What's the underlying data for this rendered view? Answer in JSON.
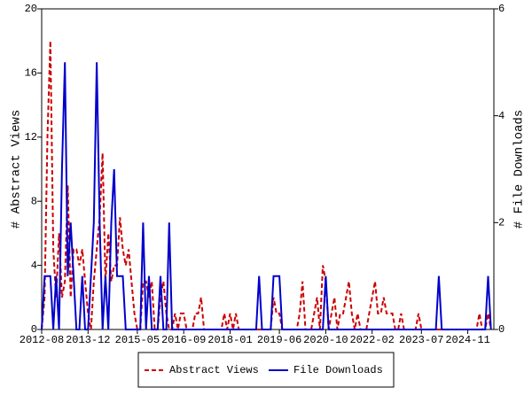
{
  "chart_data": {
    "type": "line",
    "categories": [
      "2012-08",
      null,
      null,
      null,
      null,
      null,
      null,
      null,
      null,
      null,
      null,
      null,
      null,
      null,
      null,
      null,
      "2013-12",
      null,
      null,
      null,
      null,
      null,
      null,
      null,
      null,
      null,
      null,
      null,
      null,
      null,
      null,
      null,
      null,
      "2015-05",
      null,
      null,
      null,
      null,
      null,
      null,
      null,
      null,
      null,
      null,
      null,
      null,
      null,
      null,
      null,
      "2016-09",
      null,
      null,
      null,
      null,
      null,
      null,
      null,
      null,
      null,
      null,
      null,
      null,
      null,
      null,
      null,
      "2018-01",
      null,
      null,
      null,
      null,
      null,
      null,
      null,
      null,
      null,
      null,
      null,
      null,
      null,
      null,
      null,
      null,
      "2019-06",
      null,
      null,
      null,
      null,
      null,
      null,
      null,
      null,
      null,
      null,
      null,
      null,
      null,
      null,
      null,
      "2020-10",
      null,
      null,
      null,
      null,
      null,
      null,
      null,
      null,
      null,
      null,
      null,
      null,
      null,
      null,
      null,
      "2022-02",
      null,
      null,
      null,
      null,
      null,
      null,
      null,
      null,
      null,
      null,
      null,
      null,
      null,
      null,
      null,
      null,
      "2023-07",
      null,
      null,
      null,
      null,
      null,
      null,
      null,
      null,
      null,
      null,
      null,
      null,
      null,
      null,
      null,
      "2024-11",
      null,
      null,
      null,
      null,
      null,
      null,
      null,
      null
    ],
    "series": [
      {
        "name": "Abstract Views",
        "color": "#cc0000",
        "dashed": true,
        "axis": "y",
        "values": [
          0,
          2,
          12,
          18,
          5,
          2,
          6,
          2,
          3,
          9,
          2,
          5,
          5,
          4,
          5,
          3,
          1,
          0,
          3,
          5,
          7,
          11,
          3,
          6,
          3,
          4,
          4,
          7,
          5,
          4,
          5,
          3,
          1,
          0,
          0,
          3,
          3,
          2,
          3,
          0,
          0,
          2,
          3,
          1,
          0,
          0,
          1,
          0,
          1,
          1,
          0,
          0,
          0,
          1,
          1,
          2,
          0,
          0,
          0,
          0,
          0,
          0,
          0,
          1,
          0,
          1,
          0,
          1,
          0,
          0,
          0,
          0,
          0,
          0,
          0,
          0,
          0,
          0,
          0,
          0,
          2,
          1,
          1,
          0,
          0,
          0,
          0,
          0,
          0,
          1,
          3,
          0,
          0,
          0,
          1,
          2,
          0,
          4,
          3,
          0,
          1,
          2,
          0,
          1,
          1,
          2,
          3,
          1,
          0,
          1,
          0,
          0,
          0,
          1,
          2,
          3,
          1,
          1,
          2,
          1,
          1,
          1,
          0,
          0,
          1,
          0,
          0,
          0,
          0,
          0,
          1,
          0,
          0,
          0,
          0,
          0,
          0,
          0,
          0,
          0,
          0,
          0,
          0,
          0,
          0,
          0,
          0,
          0,
          0,
          0,
          0,
          1,
          0,
          0,
          1,
          0
        ]
      },
      {
        "name": "File Downloads",
        "color": "#0000cc",
        "dashed": false,
        "axis": "y2",
        "values": [
          0,
          1,
          1,
          1,
          0,
          1,
          0,
          3,
          5,
          1,
          2,
          1,
          0,
          0,
          1,
          0,
          0,
          1,
          2,
          5,
          2,
          0,
          1,
          0,
          2,
          3,
          1,
          1,
          1,
          0,
          0,
          0,
          0,
          0,
          0,
          2,
          0,
          1,
          0,
          0,
          0,
          1,
          0,
          0,
          2,
          0,
          0,
          0,
          0,
          0,
          0,
          0,
          0,
          0,
          0,
          0,
          0,
          0,
          0,
          0,
          0,
          0,
          0,
          0,
          0,
          0,
          0,
          0,
          0,
          0,
          0,
          0,
          0,
          0,
          0,
          1,
          0,
          0,
          0,
          0,
          1,
          1,
          1,
          0,
          0,
          0,
          0,
          0,
          0,
          0,
          0,
          0,
          0,
          0,
          0,
          0,
          0,
          0,
          1,
          0,
          0,
          0,
          0,
          0,
          0,
          0,
          0,
          0,
          0,
          0,
          0,
          0,
          0,
          0,
          0,
          0,
          0,
          0,
          0,
          0,
          0,
          0,
          0,
          0,
          0,
          0,
          0,
          0,
          0,
          0,
          0,
          0,
          0,
          0,
          0,
          0,
          0,
          1,
          0,
          0,
          0,
          0,
          0,
          0,
          0,
          0,
          0,
          0,
          0,
          0,
          0,
          0,
          0,
          0,
          1,
          0
        ]
      }
    ],
    "ylabel": "# Abstract Views",
    "y2label": "# File Downloads",
    "ylim": [
      0,
      20
    ],
    "yticks": [
      0,
      4,
      8,
      12,
      16,
      20
    ],
    "y2lim": [
      0,
      6
    ],
    "y2ticks": [
      0,
      2,
      4,
      6
    ]
  }
}
